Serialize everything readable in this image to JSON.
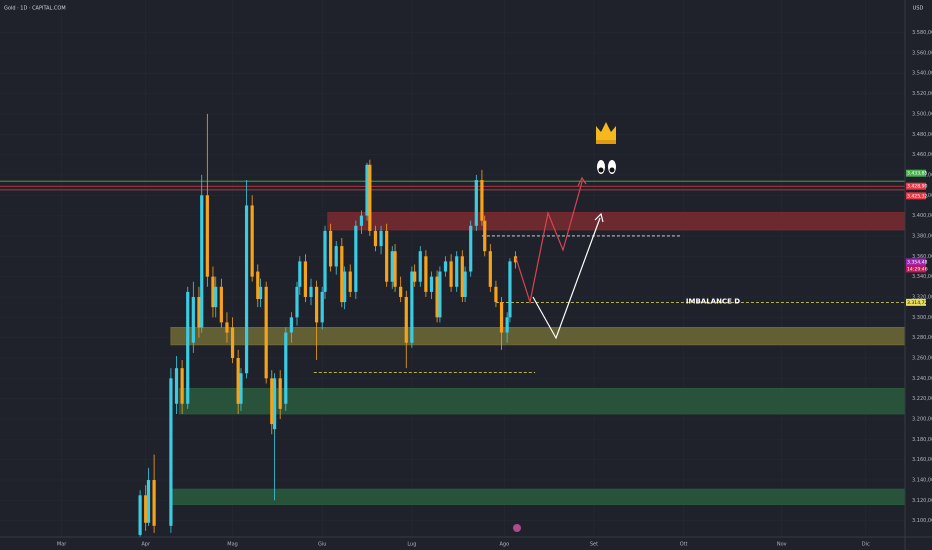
{
  "chart_data": {
    "type": "candlestick",
    "title": "Gold · 1D · CAPITAL.COM",
    "currency": "USD",
    "up_color": "#3ccbe0",
    "down_color": "#f7a21b",
    "xlim": [
      -22,
      301
    ],
    "ylim": [
      3084,
      3612
    ],
    "xticks": [
      {
        "value": 0,
        "label": "Mar"
      },
      {
        "value": 30,
        "label": "Apr"
      },
      {
        "value": 61,
        "label": "Mag"
      },
      {
        "value": 93,
        "label": "Giu"
      },
      {
        "value": 125,
        "label": "Lug"
      },
      {
        "value": 158,
        "label": "Ago"
      },
      {
        "value": 190,
        "label": "Set"
      },
      {
        "value": 222,
        "label": "Ott"
      },
      {
        "value": 257,
        "label": "Nov"
      },
      {
        "value": 287,
        "label": "Dic"
      }
    ],
    "yticks": [
      {
        "value": 3100,
        "label": "3.100,00"
      },
      {
        "value": 3120,
        "label": "3.120,00"
      },
      {
        "value": 3140,
        "label": "3.140,00"
      },
      {
        "value": 3160,
        "label": "3.160,00"
      },
      {
        "value": 3180,
        "label": "3.180,00"
      },
      {
        "value": 3200,
        "label": "3.200,00"
      },
      {
        "value": 3220,
        "label": "3.220,00"
      },
      {
        "value": 3240,
        "label": "3.240,00"
      },
      {
        "value": 3260,
        "label": "3.260,00"
      },
      {
        "value": 3280,
        "label": "3.280,00"
      },
      {
        "value": 3300,
        "label": "3.300,00"
      },
      {
        "value": 3320,
        "label": "3.320,00"
      },
      {
        "value": 3340,
        "label": "3.340,00"
      },
      {
        "value": 3360,
        "label": "3.360,00"
      },
      {
        "value": 3380,
        "label": "3.380,00"
      },
      {
        "value": 3400,
        "label": "3.400,00"
      },
      {
        "value": 3420,
        "label": "3.420,00"
      },
      {
        "value": 3440,
        "label": "3.440,00"
      },
      {
        "value": 3460,
        "label": "3.460,00"
      },
      {
        "value": 3480,
        "label": "3.480,00"
      },
      {
        "value": 3500,
        "label": "3.500,00"
      },
      {
        "value": 3520,
        "label": "3.520,00"
      },
      {
        "value": 3540,
        "label": "3.540,00"
      },
      {
        "value": 3560,
        "label": "3.560,00"
      },
      {
        "value": 3580,
        "label": "3.580,00"
      }
    ],
    "grid": true,
    "x": [
      28,
      30,
      31,
      33,
      39,
      41,
      43,
      45,
      47,
      49,
      50,
      52,
      54,
      55,
      57,
      59,
      61,
      63,
      64,
      66,
      68,
      70,
      71,
      73,
      75,
      76,
      78,
      80,
      82,
      84,
      85,
      87,
      89,
      91,
      93,
      94,
      96,
      98,
      100,
      101,
      103,
      105,
      107,
      109,
      110,
      112,
      114,
      116,
      118,
      119,
      121,
      123,
      125,
      126,
      128,
      130,
      132,
      134,
      135,
      137,
      139,
      141,
      143,
      144,
      146,
      148,
      150,
      151,
      153,
      155,
      157,
      159,
      160,
      162
    ],
    "open": [
      3086,
      3125,
      3098,
      3140,
      3095,
      3215,
      3250,
      3215,
      3275,
      3320,
      3290,
      3420,
      3340,
      3310,
      3330,
      3295,
      3290,
      3260,
      3215,
      3245,
      3410,
      3345,
      3318,
      3330,
      3240,
      3190,
      3240,
      3215,
      3285,
      3300,
      3330,
      3355,
      3320,
      3330,
      3295,
      3325,
      3385,
      3350,
      3370,
      3315,
      3345,
      3325,
      3390,
      3400,
      3450,
      3385,
      3370,
      3385,
      3335,
      3365,
      3330,
      3320,
      3275,
      3345,
      3335,
      3360,
      3325,
      3340,
      3300,
      3345,
      3355,
      3330,
      3360,
      3320,
      3345,
      3390,
      3435,
      3395,
      3365,
      3330,
      3315,
      3285,
      3300,
      3360
    ],
    "high": [
      3130,
      3135,
      3152,
      3165,
      3250,
      3262,
      3258,
      3330,
      3335,
      3330,
      3440,
      3500,
      3350,
      3340,
      3338,
      3305,
      3300,
      3268,
      3250,
      3435,
      3420,
      3352,
      3338,
      3335,
      3248,
      3245,
      3248,
      3290,
      3305,
      3335,
      3360,
      3362,
      3338,
      3336,
      3330,
      3390,
      3392,
      3375,
      3378,
      3350,
      3352,
      3395,
      3405,
      3452,
      3455,
      3390,
      3390,
      3392,
      3370,
      3372,
      3340,
      3326,
      3350,
      3352,
      3370,
      3366,
      3345,
      3346,
      3350,
      3360,
      3362,
      3365,
      3366,
      3350,
      3395,
      3440,
      3445,
      3400,
      3372,
      3336,
      3320,
      3305,
      3358,
      3365
    ],
    "low": [
      3080,
      3090,
      3095,
      3088,
      3088,
      3205,
      3205,
      3210,
      3265,
      3280,
      3285,
      3330,
      3300,
      3300,
      3290,
      3275,
      3255,
      3205,
      3208,
      3240,
      3335,
      3310,
      3310,
      3235,
      3185,
      3120,
      3200,
      3208,
      3275,
      3292,
      3322,
      3315,
      3312,
      3258,
      3288,
      3318,
      3345,
      3342,
      3310,
      3308,
      3320,
      3318,
      3382,
      3395,
      3380,
      3365,
      3362,
      3330,
      3328,
      3325,
      3315,
      3250,
      3270,
      3330,
      3330,
      3320,
      3318,
      3295,
      3295,
      3340,
      3325,
      3325,
      3315,
      3315,
      3340,
      3385,
      3390,
      3360,
      3325,
      3310,
      3268,
      3275,
      3295,
      3348
    ],
    "close": [
      3125,
      3098,
      3140,
      3095,
      3240,
      3250,
      3215,
      3325,
      3320,
      3290,
      3420,
      3340,
      3310,
      3330,
      3295,
      3285,
      3260,
      3215,
      3245,
      3410,
      3340,
      3318,
      3330,
      3240,
      3195,
      3240,
      3210,
      3285,
      3300,
      3330,
      3355,
      3320,
      3330,
      3295,
      3325,
      3385,
      3350,
      3370,
      3315,
      3345,
      3325,
      3390,
      3400,
      3450,
      3385,
      3370,
      3385,
      3335,
      3365,
      3330,
      3320,
      3275,
      3345,
      3335,
      3365,
      3325,
      3340,
      3300,
      3345,
      3355,
      3330,
      3360,
      3320,
      3345,
      3390,
      3435,
      3395,
      3365,
      3330,
      3315,
      3285,
      3300,
      3355,
      3354
    ],
    "zones": [
      {
        "x": 95,
        "top": 3403,
        "bottom": 3386,
        "color": "#7a2a30"
      },
      {
        "x": 39,
        "top": 3290,
        "bottom": 3273,
        "color": "#6d6a35"
      },
      {
        "x": 42,
        "top": 3230,
        "bottom": 3205,
        "color": "#2a5a3c"
      },
      {
        "x": 39,
        "top": 3131,
        "bottom": 3116,
        "color": "#2a5a3c"
      }
    ],
    "levels": [
      {
        "value": 3433.85,
        "label": "3.433,85",
        "color": "#4caf50"
      },
      {
        "value": 3428.9,
        "label": "3.428,90",
        "color": "#e53945"
      },
      {
        "value": 3425.32,
        "label": "3.425,32",
        "color": "#e53945"
      }
    ],
    "segments": [
      {
        "x": [
          150,
          221
        ],
        "value": 3380,
        "color": "#e8e8e8"
      },
      {
        "x": [
          90,
          169
        ],
        "value": 3245.6,
        "color": "#e8e05a"
      },
      {
        "x": [
          155,
          301
        ],
        "value": 3314.72,
        "color": "#e8e05a",
        "label": "IMBALANCE D"
      }
    ],
    "price_labels": [
      {
        "value": 3354.48,
        "label": "3.354,48",
        "color": "#9c27b0"
      },
      {
        "value": 3314.72,
        "label": "3.314,72",
        "color": "#e8e05a"
      }
    ],
    "countdown": "14:29:46"
  }
}
